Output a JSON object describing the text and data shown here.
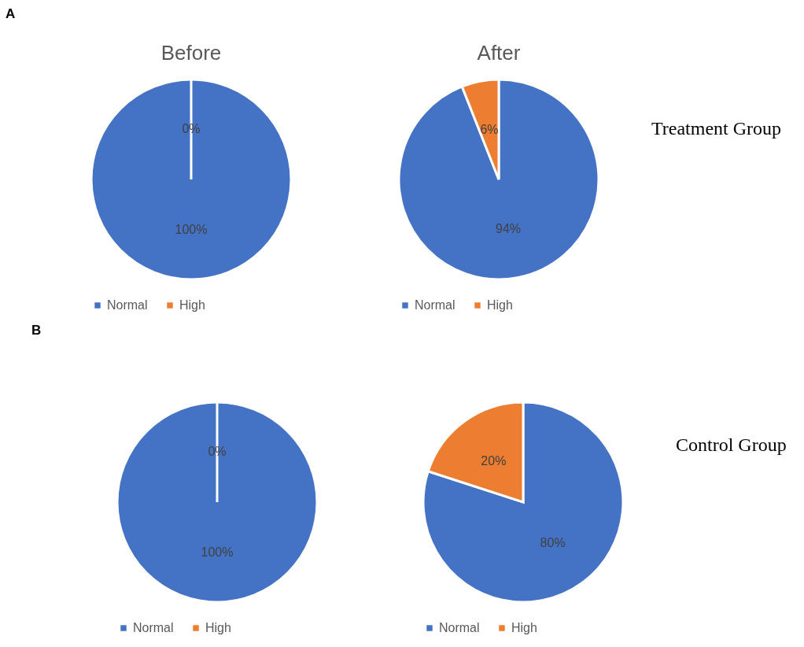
{
  "chart_data": [
    {
      "type": "pie",
      "title": "Before",
      "annotations": [
        "A"
      ],
      "categories": [
        "Normal",
        "High"
      ],
      "values": [
        100,
        0
      ],
      "value_labels": [
        "100%",
        "0%"
      ],
      "colors": [
        "#4472c4",
        "#ed7d31"
      ],
      "legend": "bottom"
    },
    {
      "type": "pie",
      "title": "After",
      "annotations": [
        "Treatment Group"
      ],
      "categories": [
        "Normal",
        "High"
      ],
      "values": [
        94,
        6
      ],
      "value_labels": [
        "94%",
        "6%"
      ],
      "colors": [
        "#4472c4",
        "#ed7d31"
      ],
      "legend": "bottom"
    },
    {
      "type": "pie",
      "annotations": [
        "B"
      ],
      "categories": [
        "Normal",
        "High"
      ],
      "values": [
        100,
        0
      ],
      "value_labels": [
        "100%",
        "0%"
      ],
      "colors": [
        "#4472c4",
        "#ed7d31"
      ],
      "legend": "bottom"
    },
    {
      "type": "pie",
      "annotations": [
        "Control Group"
      ],
      "categories": [
        "Normal",
        "High"
      ],
      "values": [
        80,
        20
      ],
      "value_labels": [
        "80%",
        "20%"
      ],
      "colors": [
        "#4472c4",
        "#ed7d31"
      ],
      "legend": "bottom"
    }
  ]
}
